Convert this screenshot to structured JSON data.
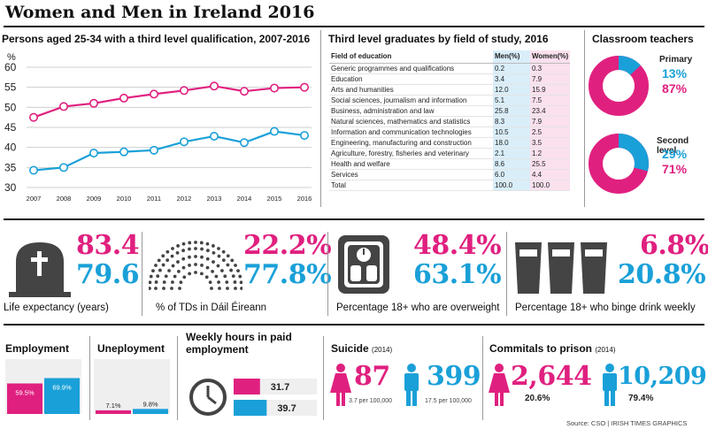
{
  "title": "Women and Men in Ireland 2016",
  "colors": {
    "women": "#e0207f",
    "men": "#1aa0d8",
    "dark": "#444444"
  },
  "chart_data": [
    {
      "type": "line",
      "title": "Persons aged 25-34 with a third level qualification, 2007-2016",
      "ylabel": "%",
      "x": [
        "2007",
        "2008",
        "2009",
        "2010",
        "2011",
        "2012",
        "2013",
        "2014",
        "2015",
        "2016"
      ],
      "yticks": [
        "30",
        "35",
        "40",
        "45",
        "50",
        "55",
        "60"
      ],
      "ylim": [
        30,
        60
      ],
      "grid": true,
      "series": [
        {
          "key": "women",
          "values": [
            47.5,
            50.2,
            51.0,
            52.3,
            53.3,
            54.2,
            55.3,
            54.0,
            54.8,
            55.0
          ]
        },
        {
          "key": "men",
          "values": [
            34.3,
            35.0,
            38.6,
            38.9,
            39.3,
            41.4,
            42.8,
            41.2,
            44.0,
            43.0
          ]
        }
      ]
    },
    {
      "type": "table",
      "title": "Third level graduates by field of study, 2016",
      "columns": [
        "Field of education",
        "Men(%)",
        "Women(%)"
      ],
      "rows": [
        [
          "Generic programmes and qualifications",
          "0.2",
          "0.3"
        ],
        [
          "Education",
          "3.4",
          "7.9"
        ],
        [
          "Arts and humanities",
          "12.0",
          "15.9"
        ],
        [
          "Social sciences, journalism and information",
          "5.1",
          "7.5"
        ],
        [
          "Business, administration and law",
          "25.8",
          "23.4"
        ],
        [
          "Natural sciences, mathematics and statistics",
          "8.3",
          "7.9"
        ],
        [
          "Information and communication technologies",
          "10.5",
          "2.5"
        ],
        [
          "Engineering, manufacturing and construction",
          "18.0",
          "3.5"
        ],
        [
          "Agriculture, forestry, fisheries and veterinary",
          "2.1",
          "1.2"
        ],
        [
          "Health and welfare",
          "8.6",
          "25.5"
        ],
        [
          "Services",
          "6.0",
          "4.4"
        ],
        [
          "Total",
          "100.0",
          "100.0"
        ]
      ]
    },
    {
      "type": "pie",
      "title": "Classroom teachers",
      "charts": [
        {
          "label": "Primary",
          "men": 13,
          "women": 87,
          "men_text": "13%",
          "women_text": "87%"
        },
        {
          "label": "Second level",
          "men": 29,
          "women": 71,
          "men_text": "29%",
          "women_text": "71%"
        }
      ]
    },
    {
      "type": "bar",
      "title": "Employment",
      "values": {
        "women": 59.5,
        "men": 69.9
      },
      "labels": {
        "women": "59.5%",
        "men": "69.9%"
      }
    },
    {
      "type": "bar",
      "title": "Uneployment",
      "values": {
        "women": 7.1,
        "men": 9.8
      },
      "labels": {
        "women": "7.1%",
        "men": "9.8%"
      }
    },
    {
      "type": "bar",
      "title": "Weekly hours in paid employment",
      "values": {
        "women": 31.7,
        "men": 39.7
      },
      "labels": {
        "women": "31.7",
        "men": "39.7"
      }
    }
  ],
  "stats": {
    "life": {
      "women": "83.4",
      "men": "79.6",
      "caption": "Life expectancy (years)"
    },
    "tds": {
      "women": "22.2%",
      "men": "77.8%",
      "caption": "% of TDs in Dáil Éireann"
    },
    "overweight": {
      "women": "48.4%",
      "men": "63.1%",
      "caption": "Percentage 18+ who are overweight"
    },
    "binge": {
      "women": "6.8%",
      "men": "20.8%",
      "caption": "Percentage 18+ who binge drink weekly"
    }
  },
  "suicide": {
    "title": "Suicide",
    "year": "(2014)",
    "women": "87",
    "men": "399",
    "women_rate": "3.7 per 100,000",
    "men_rate": "17.5 per 100,000"
  },
  "prison": {
    "title": "Commitals to prison",
    "year": "(2014)",
    "women": "2,644",
    "men": "10,209",
    "women_pct": "20.6%",
    "men_pct": "79.4%"
  },
  "source": "Source: CSO | IRISH TIMES GRAPHICS"
}
